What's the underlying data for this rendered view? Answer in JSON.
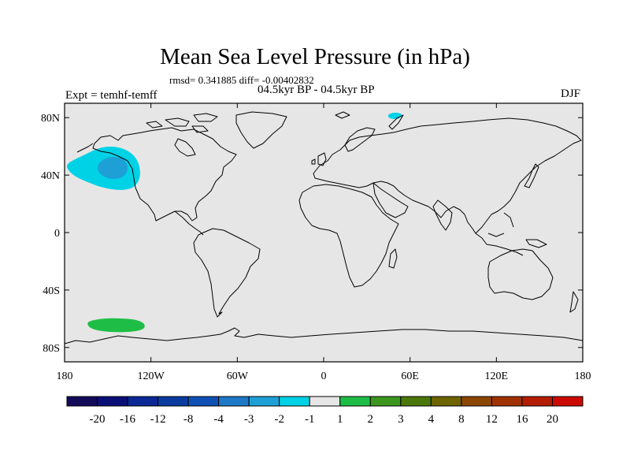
{
  "title": "Mean Sea Level Pressure (in hPa)",
  "stats": "rmsd= 0.341885  diff= -0.00402832",
  "subtitle": "04.5kyr BP - 04.5kyr BP",
  "expt_label": "Expt = temhf-temff",
  "season": "DJF",
  "map": {
    "background_color": "#e6e6e6",
    "coastline_color": "#000000",
    "lat_ticks": [
      "80N",
      "40N",
      "0",
      "40S",
      "80S"
    ],
    "lon_ticks": [
      "180",
      "120W",
      "60W",
      "0",
      "60E",
      "120E",
      "180"
    ]
  },
  "anomalies": [
    {
      "name": "north-pacific-low",
      "level": "-3 to -2",
      "color": "#00ced1",
      "center_lon": -145,
      "center_lat": 45
    },
    {
      "name": "north-pacific-low-core",
      "level": "-4 to -3",
      "color": "#1e90cd",
      "center_lon": -143,
      "center_lat": 46
    },
    {
      "name": "southern-ocean-high",
      "level": "1 to 2",
      "color": "#2fb14a",
      "center_lon": -145,
      "center_lat": -63
    },
    {
      "name": "barents-low",
      "level": "-3 to -2",
      "color": "#00ced1",
      "center_lon": 49,
      "center_lat": 81
    }
  ],
  "colorbar": {
    "labels": [
      "-20",
      "-16",
      "-12",
      "-8",
      "-4",
      "-3",
      "-2",
      "-1",
      "1",
      "2",
      "3",
      "4",
      "8",
      "12",
      "16",
      "20"
    ],
    "colors": [
      "#140a5a",
      "#0a0f78",
      "#0a2896",
      "#0a3ca0",
      "#0f50b4",
      "#1e78c8",
      "#1ea0d7",
      "#00d2e6",
      "#e6e6e6",
      "#1ebe46",
      "#3c961e",
      "#4b780a",
      "#6e6400",
      "#8c4600",
      "#a03200",
      "#b41e00",
      "#cd0a00"
    ]
  }
}
